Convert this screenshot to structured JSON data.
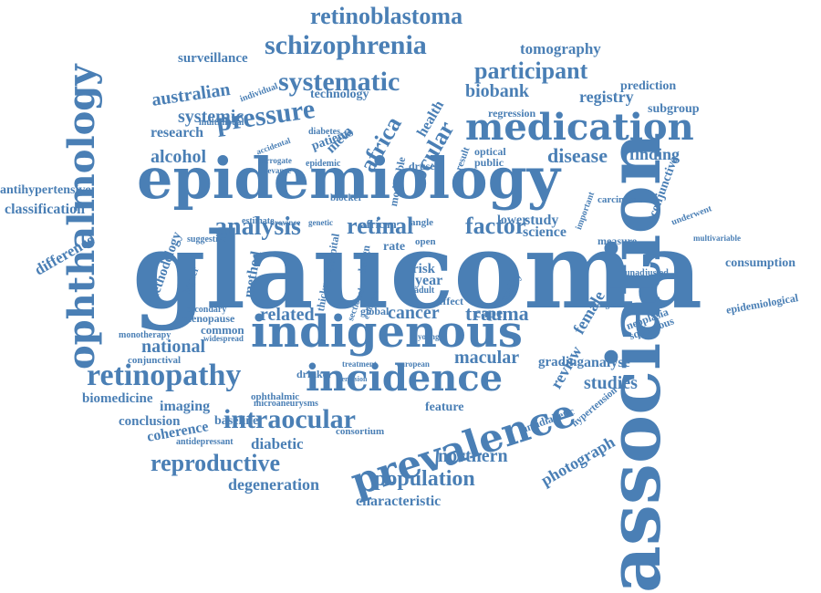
{
  "cloud": {
    "color": "#4a7fb5",
    "words": [
      "glaucoma",
      "epidemiology",
      "association",
      "indigenous",
      "prevalence",
      "incidence",
      "medication",
      "ophthalmology",
      "retinopathy",
      "schizophrenia",
      "retinoblastoma",
      "systematic",
      "participant",
      "pressure",
      "intraocular",
      "analysis",
      "retinal",
      "factor",
      "ocular",
      "reproductive",
      "population",
      "australian",
      "systemic",
      "alcohol",
      "disease",
      "finding",
      "biobank",
      "registry",
      "tomography",
      "surveillance",
      "prediction",
      "subgroup",
      "africa",
      "health",
      "research",
      "technology",
      "regression",
      "classification",
      "antihypertensive",
      "difference",
      "methodology",
      "method",
      "thickness",
      "related",
      "cancer",
      "trauma",
      "female",
      "review",
      "macular",
      "grading",
      "analyse",
      "studies",
      "national",
      "biomedicine",
      "imaging",
      "conclusion",
      "coherence",
      "diabetic",
      "degeneration",
      "characteristic",
      "northern",
      "photograph",
      "epidemiological",
      "consumption",
      "multivariable",
      "conjunctiva",
      "carcinoma",
      "science",
      "lower",
      "study",
      "feature",
      "consortium",
      "antidepressant",
      "baseline",
      "menopause",
      "common",
      "monotherapy",
      "conjunctival",
      "ophthalmic",
      "microaneurysms",
      "cape",
      "year",
      "risk",
      "adult",
      "effect",
      "rate",
      "higher",
      "suggestive",
      "estimate",
      "province",
      "genetic",
      "african",
      "angle",
      "blocker",
      "optical",
      "public",
      "result",
      "drusen",
      "epidemic",
      "patients",
      "meta",
      "diabetes",
      "surrogate",
      "relevance",
      "accidental",
      "multimodal",
      "individual",
      "important",
      "underwent",
      "neoplasia",
      "squamous",
      "hypertension",
      "antidiabetic",
      "unadjusted",
      "measure",
      "secondary",
      "global",
      "sectional",
      "drinker",
      "treatment",
      "perfusion",
      "evidence",
      "modifiable",
      "hospital",
      "design",
      "quality",
      "open",
      "european",
      "widespread",
      "younger",
      "background"
    ]
  }
}
